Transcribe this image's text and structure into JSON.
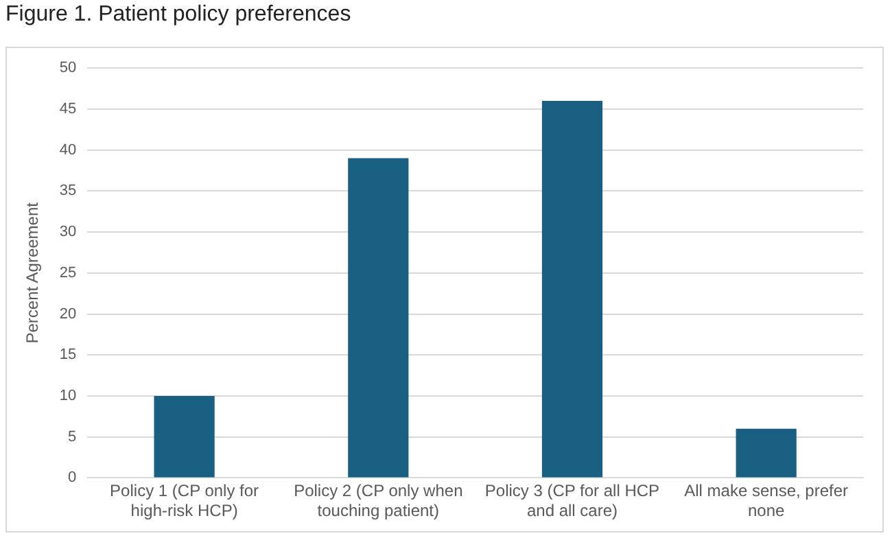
{
  "chart_data": {
    "type": "bar",
    "title": "Figure 1.  Patient policy preferences",
    "ylabel": "Percent Agreement",
    "categories": [
      "Policy 1 (CP only for high-risk HCP)",
      "Policy 2 (CP only when touching patient)",
      "Policy 3 (CP for all HCP and all care)",
      "All make sense, prefer none"
    ],
    "values": [
      10,
      39,
      46,
      6
    ],
    "color": "#185f81",
    "ylim": [
      0,
      50
    ],
    "yticks": [
      0,
      5,
      10,
      15,
      20,
      25,
      30,
      35,
      40,
      45,
      50
    ],
    "grid": "y"
  }
}
